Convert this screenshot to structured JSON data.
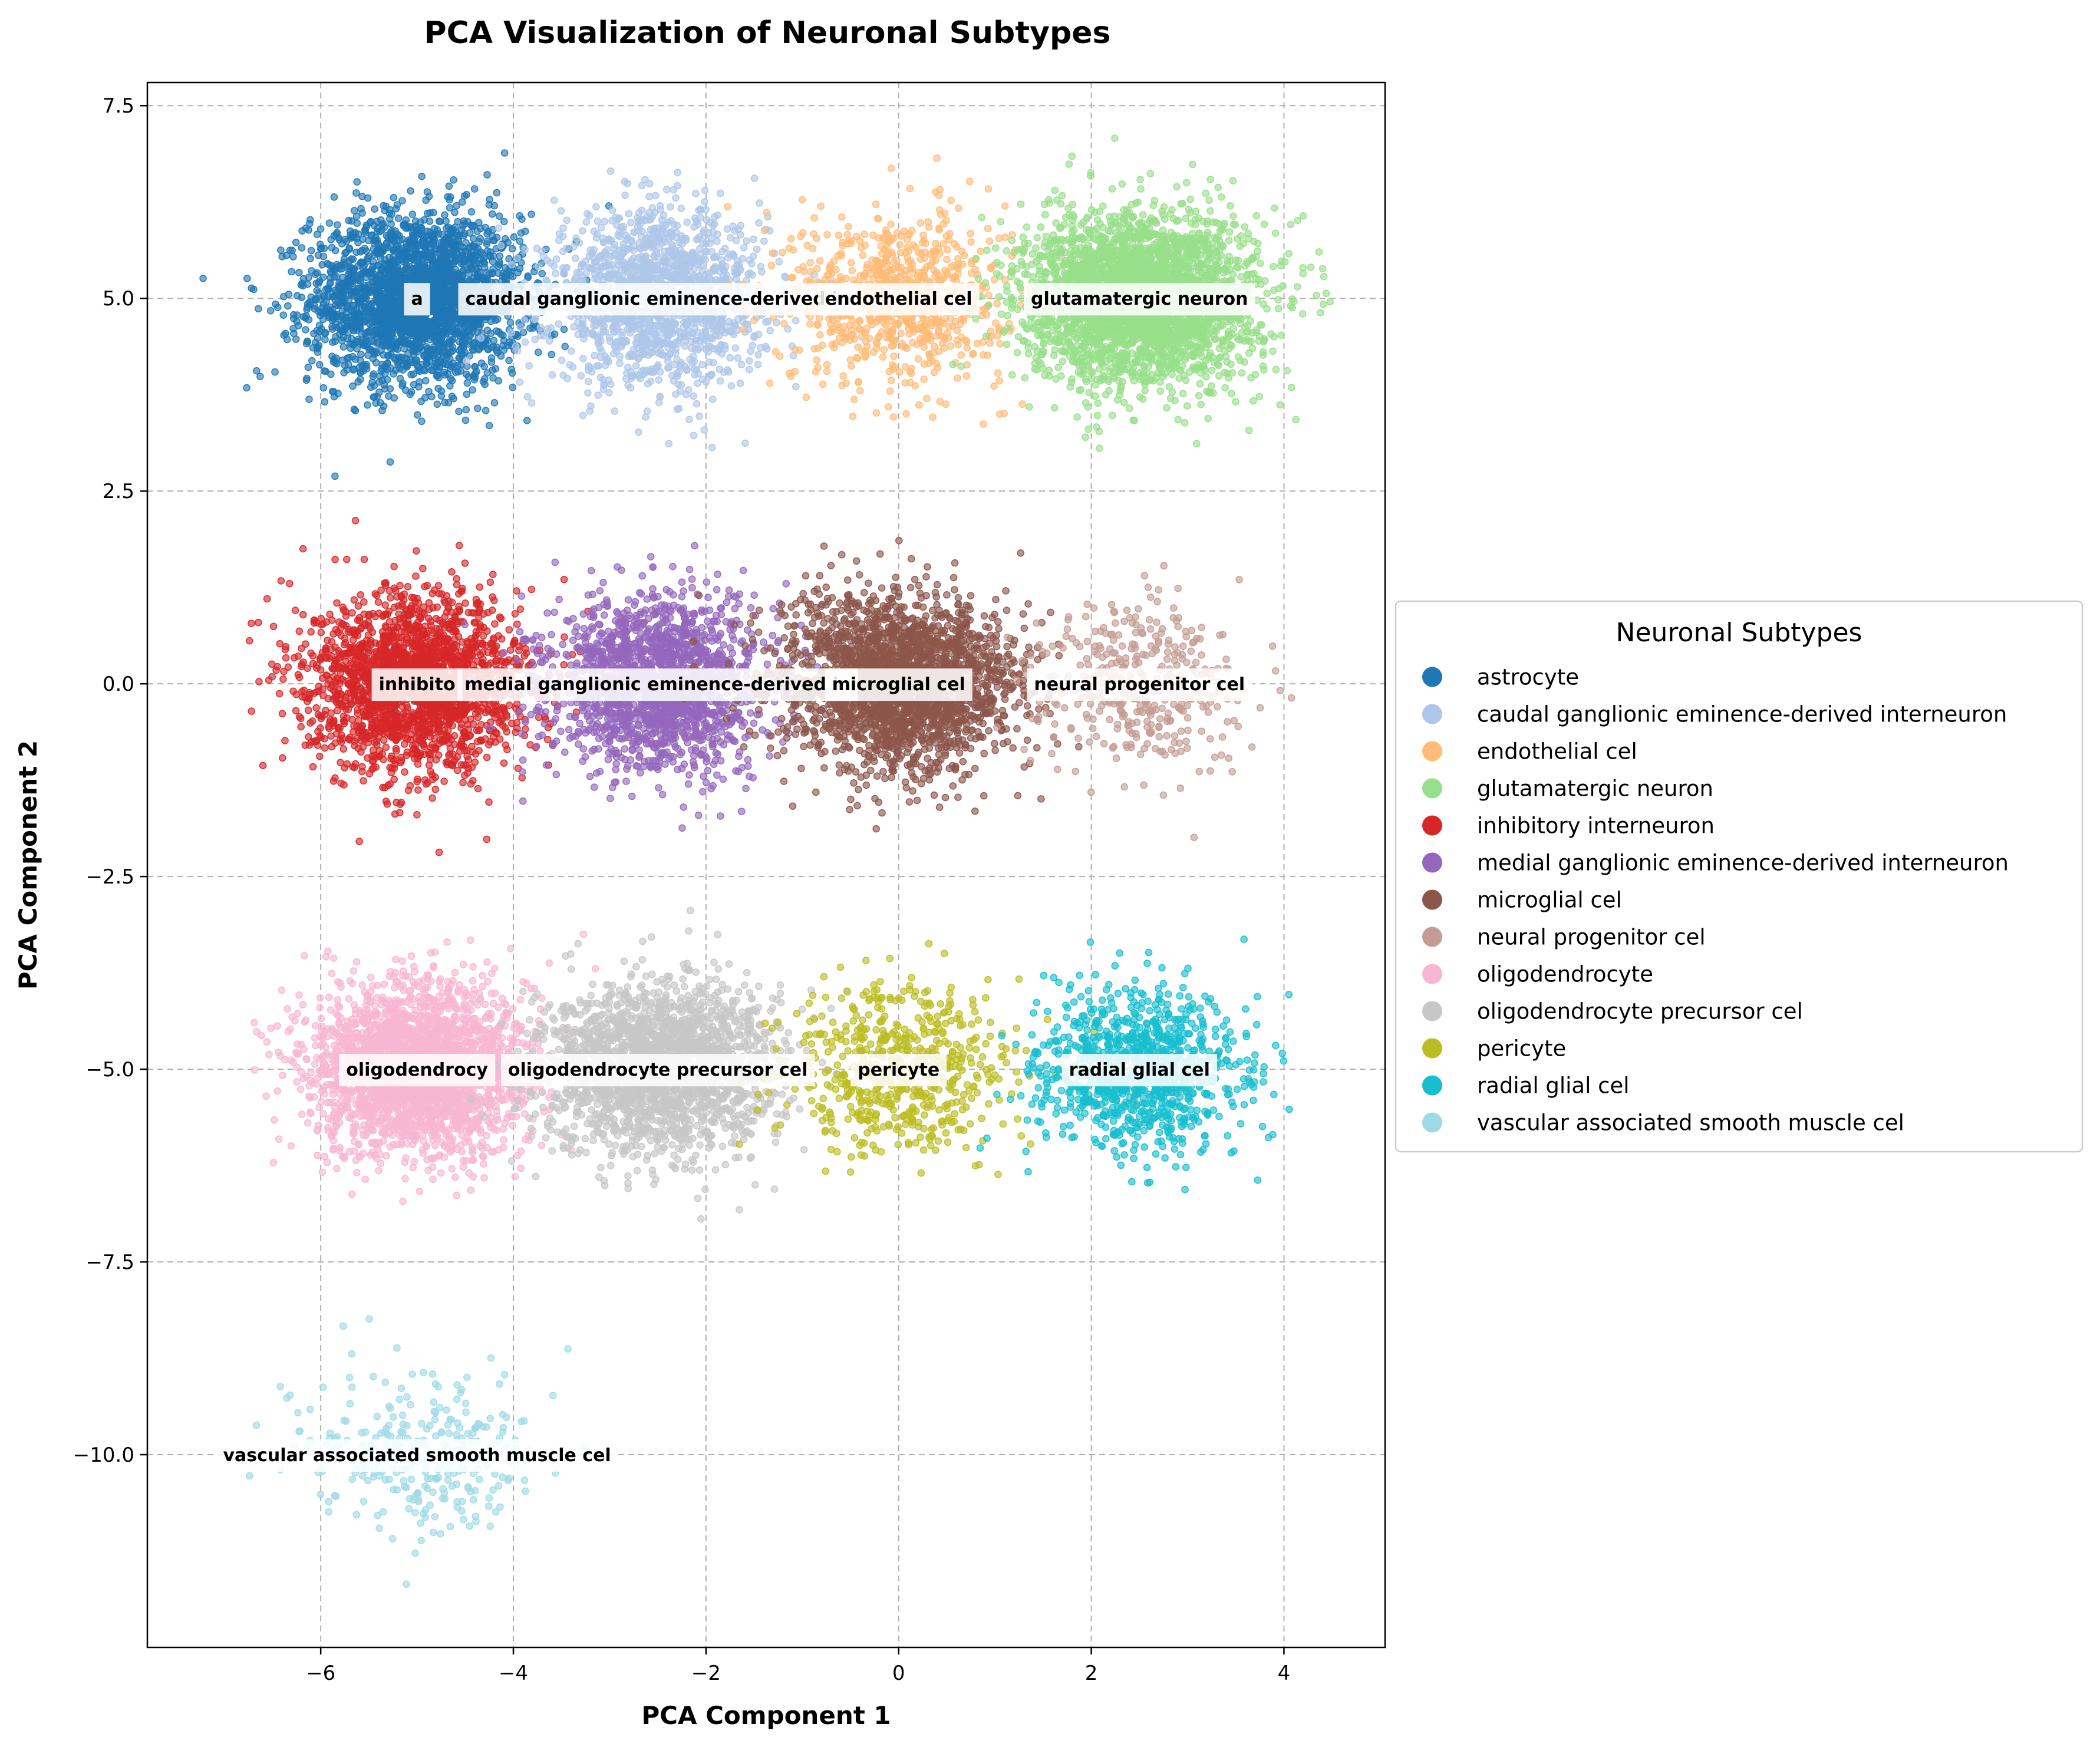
{
  "chart_data": {
    "type": "scatter",
    "title": "PCA Visualization of Neuronal Subtypes",
    "xlabel": "PCA Component 1",
    "ylabel": "PCA Component 2",
    "xlim": [
      -7.8,
      5.05
    ],
    "ylim": [
      -12.5,
      7.8
    ],
    "xticks": [
      -6,
      -4,
      -2,
      0,
      2,
      4
    ],
    "xtick_labels": [
      "−6",
      "−4",
      "−2",
      "0",
      "2",
      "4"
    ],
    "yticks": [
      7.5,
      5.0,
      2.5,
      0.0,
      -2.5,
      -5.0,
      -7.5,
      -10.0
    ],
    "ytick_labels": [
      "7.5",
      "5.0",
      "2.5",
      "0.0",
      "−2.5",
      "−5.0",
      "−7.5",
      "−10.0"
    ],
    "grid": true,
    "legend": {
      "title": "Neuronal Subtypes",
      "placement": "right, outside"
    },
    "series": [
      {
        "name": "astrocyte",
        "color": "#1f77b4",
        "center": [
          -5.0,
          5.0
        ],
        "spread": [
          0.55,
          0.55
        ],
        "count": 2600,
        "label": "a"
      },
      {
        "name": "caudal ganglionic eminence-derived interneuron",
        "color": "#aec7e8",
        "center": [
          -2.5,
          5.0
        ],
        "spread": [
          0.55,
          0.55
        ],
        "count": 1600,
        "label": "caudal ganglionic eminence-derived in"
      },
      {
        "name": "endothelial cel",
        "color": "#ffbb78",
        "center": [
          0.0,
          5.0
        ],
        "spread": [
          0.55,
          0.55
        ],
        "count": 800,
        "label": "endothelial cel"
      },
      {
        "name": "glutamatergic neuron",
        "color": "#98df8a",
        "center": [
          2.5,
          5.0
        ],
        "spread": [
          0.6,
          0.55
        ],
        "count": 3000,
        "label": "glutamatergic neuron"
      },
      {
        "name": "inhibitory interneuron",
        "color": "#d62728",
        "center": [
          -5.0,
          0.0
        ],
        "spread": [
          0.55,
          0.55
        ],
        "count": 2200,
        "label": "inhibito"
      },
      {
        "name": "medial ganglionic eminence-derived interneuron",
        "color": "#9467bd",
        "center": [
          -2.5,
          0.0
        ],
        "spread": [
          0.55,
          0.55
        ],
        "count": 1800,
        "label": "medial ganglionic eminence-derived in"
      },
      {
        "name": "microglial cel",
        "color": "#8c564b",
        "center": [
          0.0,
          0.0
        ],
        "spread": [
          0.6,
          0.55
        ],
        "count": 2400,
        "label": "microglial cel"
      },
      {
        "name": "neural progenitor cel",
        "color": "#c49c94",
        "center": [
          2.5,
          0.0
        ],
        "spread": [
          0.55,
          0.55
        ],
        "count": 400,
        "label": "neural progenitor cel"
      },
      {
        "name": "oligodendrocyte",
        "color": "#f7b6d2",
        "center": [
          -5.0,
          -5.0
        ],
        "spread": [
          0.55,
          0.55
        ],
        "count": 2600,
        "label": "oligodendrocy"
      },
      {
        "name": "oligodendrocyte precursor cel",
        "color": "#c7c7c7",
        "center": [
          -2.5,
          -5.0
        ],
        "spread": [
          0.6,
          0.55
        ],
        "count": 2200,
        "label": "oligodendrocyte precursor cel"
      },
      {
        "name": "pericyte",
        "color": "#bcbd22",
        "center": [
          0.0,
          -5.0
        ],
        "spread": [
          0.55,
          0.55
        ],
        "count": 600,
        "label": "pericyte"
      },
      {
        "name": "radial glial cel",
        "color": "#17becf",
        "center": [
          2.5,
          -5.0
        ],
        "spread": [
          0.55,
          0.5
        ],
        "count": 1000,
        "label": "radial glial cel"
      },
      {
        "name": "vascular associated smooth muscle cel",
        "color": "#9edae5",
        "center": [
          -5.0,
          -10.0
        ],
        "spread": [
          0.55,
          0.55
        ],
        "count": 300,
        "label": "vascular associated smooth muscle cel"
      }
    ]
  }
}
